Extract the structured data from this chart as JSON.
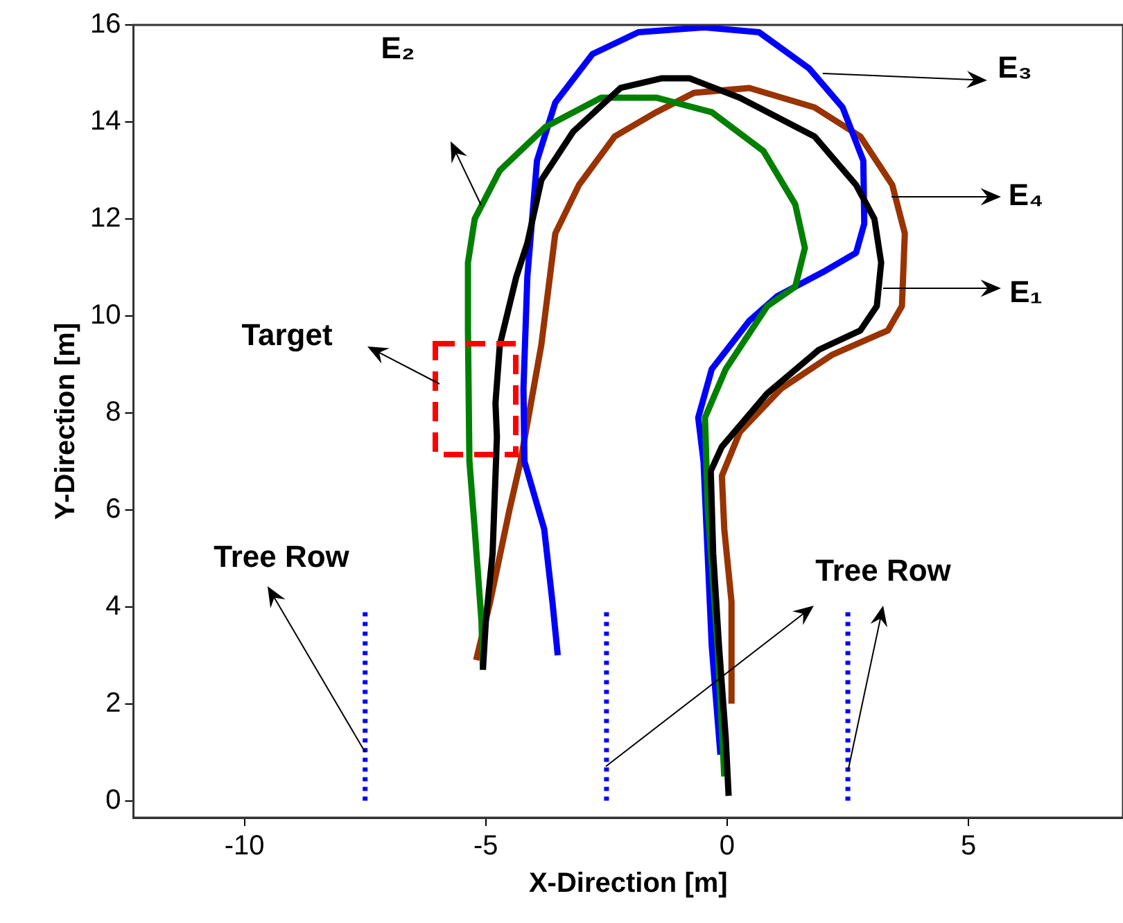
{
  "chart_data": {
    "type": "line",
    "xlabel": "X-Direction [m]",
    "ylabel": "Y-Direction [m]",
    "xlim": [
      -12.3,
      8.2
    ],
    "ylim": [
      -0.35,
      16
    ],
    "xticks": [
      -10,
      -5,
      0,
      5
    ],
    "yticks": [
      0,
      2,
      4,
      6,
      8,
      10,
      12,
      14,
      16
    ],
    "grid": false,
    "legend": false,
    "marker": "none",
    "series": [
      {
        "color": "#000000",
        "line_style": "solid",
        "x": [
          0.03,
          -0.03,
          -0.17,
          -0.29,
          -0.34,
          -0.11,
          0.83,
          1.9,
          2.76,
          3.1,
          3.19,
          3.05,
          2.67,
          1.81,
          0.26,
          -0.78,
          -1.35,
          -2.21,
          -3.19,
          -3.85,
          -4.14,
          -4.37,
          -4.71,
          -4.8,
          -4.77,
          -4.86,
          -5.0,
          -5.06
        ],
        "values": [
          0.1,
          1.3,
          3.2,
          5.1,
          6.8,
          7.3,
          8.4,
          9.3,
          9.7,
          10.2,
          11.1,
          12.0,
          12.7,
          13.7,
          14.5,
          14.9,
          14.9,
          14.7,
          13.8,
          12.8,
          11.5,
          10.8,
          9.4,
          8.2,
          7.5,
          5.1,
          3.7,
          2.7
        ]
      },
      {
        "color": "#008000",
        "line_style": "solid",
        "x": [
          -0.06,
          -0.2,
          -0.4,
          -0.46,
          -0.03,
          0.83,
          1.41,
          1.61,
          1.41,
          0.75,
          -0.32,
          -1.47,
          -2.61,
          -3.76,
          -4.71,
          -5.23,
          -5.37,
          -5.37,
          -5.34,
          -5.23,
          -5.09,
          -5.06
        ],
        "values": [
          0.5,
          3.2,
          6.0,
          7.9,
          8.9,
          10.2,
          10.6,
          11.4,
          12.3,
          13.4,
          14.2,
          14.5,
          14.5,
          13.9,
          13.0,
          12.0,
          11.1,
          9.7,
          7.0,
          5.6,
          3.7,
          2.7
        ]
      },
      {
        "color": "#0000ff",
        "line_style": "solid",
        "x": [
          -0.14,
          -0.32,
          -0.49,
          -0.6,
          -0.32,
          0.46,
          1.03,
          1.98,
          2.67,
          2.84,
          2.82,
          2.39,
          1.7,
          0.66,
          -0.49,
          -1.84,
          -2.79,
          -3.56,
          -3.94,
          -4.14,
          -4.22,
          -4.2,
          -3.79,
          -3.62,
          -3.51
        ],
        "values": [
          0.95,
          3.2,
          7.0,
          7.9,
          8.9,
          9.9,
          10.4,
          10.9,
          11.3,
          11.9,
          13.2,
          14.3,
          15.1,
          15.85,
          15.95,
          15.85,
          15.4,
          14.4,
          13.2,
          10.8,
          8.5,
          7.0,
          5.6,
          4.1,
          3.0
        ]
      },
      {
        "color": "#993300",
        "line_style": "solid",
        "x": [
          0.09,
          0.09,
          -0.06,
          -0.11,
          0.26,
          1.12,
          2.18,
          3.33,
          3.62,
          3.68,
          3.42,
          2.76,
          1.81,
          0.46,
          -0.69,
          -1.47,
          -2.33,
          -3.07,
          -3.56,
          -3.85,
          -4.28,
          -4.51,
          -4.91,
          -5.2
        ],
        "values": [
          2.0,
          4.1,
          5.6,
          6.7,
          7.6,
          8.5,
          9.2,
          9.7,
          10.2,
          11.7,
          12.7,
          13.7,
          14.3,
          14.7,
          14.6,
          14.2,
          13.7,
          12.7,
          11.7,
          9.4,
          7.0,
          6.0,
          4.1,
          2.9
        ]
      },
      {
        "color": "#0000ff",
        "line_style": "dotted",
        "x": [
          -7.5,
          -7.5
        ],
        "values": [
          0,
          4
        ]
      },
      {
        "color": "#0000ff",
        "line_style": "dotted",
        "x": [
          -2.5,
          -2.5
        ],
        "values": [
          0,
          4
        ]
      },
      {
        "color": "#0000ff",
        "line_style": "dotted",
        "x": [
          2.5,
          2.5
        ],
        "values": [
          0,
          4
        ]
      }
    ],
    "annotations": [
      "E₂",
      {
        "text": "E₃",
        "x": 1.98,
        "y": 15.0
      },
      "E₄",
      "E₁",
      "Target",
      {
        "text": "Tree Row",
        "x": -7.5,
        "y": 1.0
      },
      {
        "text": "Tree Row",
        "x": 2.5,
        "y": 0.6
      }
    ]
  }
}
